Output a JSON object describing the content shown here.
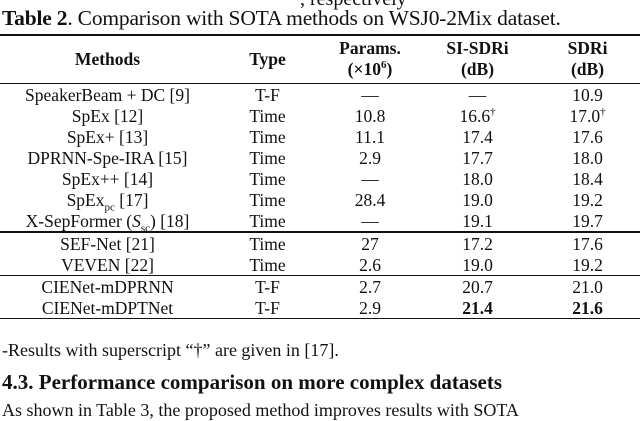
{
  "top_partial_text": ", respectively",
  "caption": {
    "label": "Table 2",
    "text": ". Comparison with SOTA methods on WSJ0-2Mix dataset."
  },
  "table": {
    "headers": {
      "methods": "Methods",
      "type": "Type",
      "params_line1": "Params.",
      "params_line2": "(×10",
      "params_sup": "6",
      "params_close": ")",
      "si_sdri_line1": "SI-SDRi",
      "si_sdri_line2": "(dB)",
      "sdri_line1": "SDRi",
      "sdri_line2": "(dB)"
    },
    "rows": [
      {
        "method": "SpeakerBeam + DC [9]",
        "type": "T-F",
        "params": "—",
        "si_sdri": "—",
        "sdri": "10.9"
      },
      {
        "method": "SpEx [12]",
        "type": "Time",
        "params": "10.8",
        "si_sdri": "16.6",
        "si_sup": "†",
        "sdri": "17.0",
        "sdri_sup": "†"
      },
      {
        "method": "SpEx+ [13]",
        "type": "Time",
        "params": "11.1",
        "si_sdri": "17.4",
        "sdri": "17.6"
      },
      {
        "method": "DPRNN-Spe-IRA [15]",
        "type": "Time",
        "params": "2.9",
        "si_sdri": "17.7",
        "sdri": "18.0"
      },
      {
        "method": "SpEx++ [14]",
        "type": "Time",
        "params": "—",
        "si_sdri": "18.0",
        "sdri": "18.4"
      },
      {
        "method_main": "SpEx",
        "method_sub": "pc",
        "method_rest": " [17]",
        "type": "Time",
        "params": "28.4",
        "si_sdri": "19.0",
        "sdri": "19.2"
      },
      {
        "method_main": "X-SepFormer (",
        "method_ital": "S",
        "method_sub": "sc",
        "method_rest": ") [18]",
        "type": "Time",
        "params": "—",
        "si_sdri": "19.1",
        "sdri": "19.7"
      },
      {
        "method": "SEF-Net [21]",
        "type": "Time",
        "params": "27",
        "si_sdri": "17.2",
        "sdri": "17.6"
      },
      {
        "method": "VEVEN [22]",
        "type": "Time",
        "params": "2.6",
        "si_sdri": "19.0",
        "sdri": "19.2"
      },
      {
        "method": "CIENet-mDPRNN",
        "type": "T-F",
        "params": "2.7",
        "si_sdri": "20.7",
        "sdri": "21.0"
      },
      {
        "method": "CIENet-mDPTNet",
        "type": "T-F",
        "params": "2.9",
        "si_sdri": "21.4",
        "sdri": "21.6"
      }
    ]
  },
  "footnote": "-Results with superscript “†” are given in [17].",
  "section_heading": "4.3. Performance comparison on more complex datasets",
  "bottom_partial_text": "As shown in Table 3, the proposed method improves results with SOTA"
}
